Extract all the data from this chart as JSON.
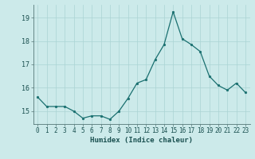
{
  "x": [
    0,
    1,
    2,
    3,
    4,
    5,
    6,
    7,
    8,
    9,
    10,
    11,
    12,
    13,
    14,
    15,
    16,
    17,
    18,
    19,
    20,
    21,
    22,
    23
  ],
  "y": [
    15.6,
    15.2,
    15.2,
    15.2,
    15.0,
    14.7,
    14.8,
    14.8,
    14.65,
    15.0,
    15.55,
    16.2,
    16.35,
    17.2,
    17.85,
    19.25,
    18.1,
    17.85,
    17.55,
    16.5,
    16.1,
    15.9,
    16.2,
    15.8
  ],
  "line_color": "#1a7070",
  "marker_color": "#1a7070",
  "bg_color": "#cceaea",
  "grid_color": "#aad4d4",
  "xlabel": "Humidex (Indice chaleur)",
  "ylim_min": 14.45,
  "ylim_max": 19.55,
  "yticks": [
    15,
    16,
    17,
    18,
    19
  ],
  "xtick_fontsize": 5.5,
  "ytick_fontsize": 6.0,
  "xlabel_fontsize": 6.5
}
